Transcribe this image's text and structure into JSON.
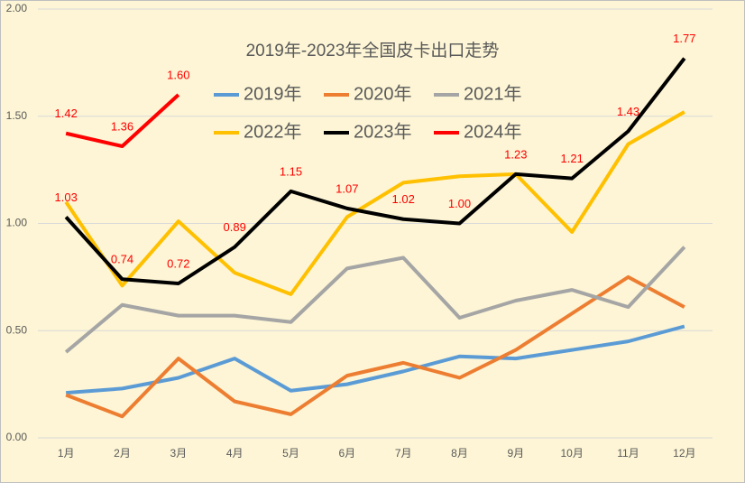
{
  "chart_data": {
    "type": "line",
    "title": "2019年-2023年全国皮卡出口走势",
    "categories": [
      "1月",
      "2月",
      "3月",
      "4月",
      "5月",
      "6月",
      "7月",
      "8月",
      "9月",
      "10月",
      "11月",
      "12月"
    ],
    "ylim": [
      0,
      2
    ],
    "yticks": [
      {
        "value": 0,
        "label": "0.00"
      },
      {
        "value": 0.5,
        "label": "0.50"
      },
      {
        "value": 1,
        "label": "1.00"
      },
      {
        "value": 1.5,
        "label": "1.50"
      },
      {
        "value": 2,
        "label": "2.00"
      }
    ],
    "grid": true,
    "series": [
      {
        "name": "2019年",
        "color": "#5b9bd5",
        "values": [
          0.21,
          0.23,
          0.28,
          0.37,
          0.22,
          0.25,
          0.31,
          0.38,
          0.37,
          0.41,
          0.45,
          0.52
        ]
      },
      {
        "name": "2020年",
        "color": "#ed7d31",
        "values": [
          0.2,
          0.1,
          0.37,
          0.17,
          0.11,
          0.29,
          0.35,
          0.28,
          0.41,
          0.58,
          0.75,
          0.61
        ]
      },
      {
        "name": "2021年",
        "color": "#a5a5a5",
        "values": [
          0.4,
          0.62,
          0.57,
          0.57,
          0.54,
          0.79,
          0.84,
          0.56,
          0.64,
          0.69,
          0.61,
          0.89
        ]
      },
      {
        "name": "2022年",
        "color": "#ffc000",
        "values": [
          1.1,
          0.71,
          1.01,
          0.77,
          0.67,
          1.03,
          1.19,
          1.22,
          1.23,
          0.96,
          1.37,
          1.52
        ]
      },
      {
        "name": "2023年",
        "color": "#000000",
        "values": [
          1.03,
          0.74,
          0.72,
          0.89,
          1.15,
          1.07,
          1.02,
          1.0,
          1.23,
          1.21,
          1.43,
          1.77
        ],
        "value_labels": [
          "1.03",
          "0.74",
          "0.72",
          "0.89",
          "1.15",
          "1.07",
          "1.02",
          "1.00",
          "1.23",
          "1.21",
          "1.43",
          "1.77"
        ]
      },
      {
        "name": "2024年",
        "color": "#ff0000",
        "values": [
          1.42,
          1.36,
          1.6,
          null,
          null,
          null,
          null,
          null,
          null,
          null,
          null,
          null
        ],
        "value_labels": [
          "1.42",
          "1.36",
          "1.60",
          null,
          null,
          null,
          null,
          null,
          null,
          null,
          null,
          null
        ]
      }
    ]
  }
}
